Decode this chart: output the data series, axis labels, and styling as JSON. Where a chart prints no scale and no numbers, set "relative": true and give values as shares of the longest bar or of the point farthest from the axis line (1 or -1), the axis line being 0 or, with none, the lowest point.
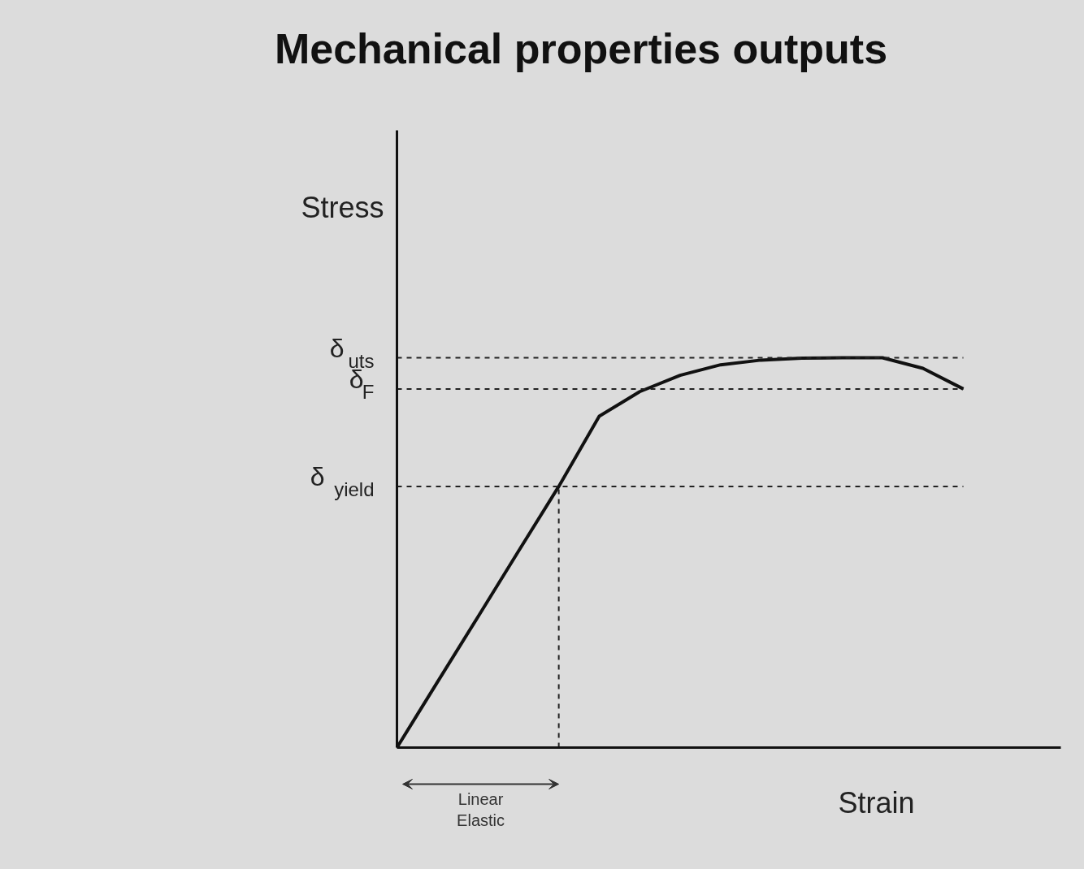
{
  "chart_data": {
    "type": "line",
    "title": "Mechanical properties outputs",
    "xlabel": "Strain",
    "ylabel": "Stress",
    "relative": true,
    "tick_labels": false,
    "marker": "none",
    "line_style": "solid",
    "categories": [
      null,
      null,
      null,
      null,
      null,
      null,
      null,
      null,
      null,
      null,
      null,
      null,
      null,
      null,
      null
    ],
    "series": [
      {
        "color": "#111111",
        "values": [
          0,
          0.168,
          0.335,
          0.503,
          0.67,
          0.85,
          0.913,
          0.955,
          0.982,
          0.994,
          0.999,
          1.0,
          1.0,
          0.973,
          0.92
        ]
      }
    ],
    "ref_lines": [
      {
        "axis": "y",
        "value": 1.0,
        "label": "δ$_{uts}$",
        "line_style": "dashed"
      },
      {
        "axis": "y",
        "value": 0.92,
        "label": "δ$_{F}$",
        "line_style": "dashed"
      },
      {
        "axis": "y",
        "value": 0.67,
        "label": "δ$_{yield}$",
        "line_style": "dashed"
      }
    ],
    "annotations": [
      "Linear\nElastic"
    ]
  }
}
